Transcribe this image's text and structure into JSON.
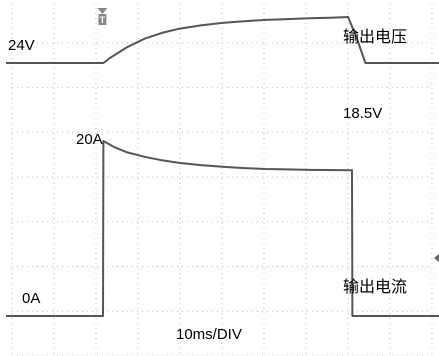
{
  "chart_data": {
    "type": "line",
    "title": "",
    "xlabel": "10ms/DIV",
    "timebase_ms_per_div": 10,
    "trigger_marker": "T",
    "grid": true,
    "grid_style": "dotted",
    "series": [
      {
        "name": "输出电压",
        "end_label": "18.5V",
        "color": "#555555",
        "points_ms": [
          [
            0,
            24.0
          ],
          [
            22.5,
            24.0
          ],
          [
            24,
            23.4
          ],
          [
            28,
            22.1
          ],
          [
            32,
            21.1
          ],
          [
            36,
            20.4
          ],
          [
            40,
            19.9
          ],
          [
            45,
            19.5
          ],
          [
            50,
            19.2
          ],
          [
            55,
            19.0
          ],
          [
            60,
            18.85
          ],
          [
            65,
            18.75
          ],
          [
            70,
            18.65
          ],
          [
            75,
            18.58
          ],
          [
            79,
            18.5
          ],
          [
            81,
            21.0
          ],
          [
            83,
            24.0
          ],
          [
            100,
            24.0
          ]
        ]
      },
      {
        "name": "输出电流",
        "start_label": "0A",
        "peak_label": "20A",
        "color": "#555555",
        "points_ms": [
          [
            0,
            0
          ],
          [
            22.4,
            0
          ],
          [
            22.5,
            20.0
          ],
          [
            25,
            19.3
          ],
          [
            28,
            18.7
          ],
          [
            32,
            18.2
          ],
          [
            36,
            17.8
          ],
          [
            40,
            17.5
          ],
          [
            45,
            17.25
          ],
          [
            50,
            17.05
          ],
          [
            55,
            16.9
          ],
          [
            60,
            16.8
          ],
          [
            65,
            16.75
          ],
          [
            70,
            16.7
          ],
          [
            79.9,
            16.65
          ],
          [
            80,
            0
          ],
          [
            100,
            0
          ]
        ]
      }
    ],
    "level_labels": {
      "voltage_high": "24V",
      "voltage_low": "18.5V",
      "current_zero": "0A",
      "current_peak": "20A"
    }
  }
}
